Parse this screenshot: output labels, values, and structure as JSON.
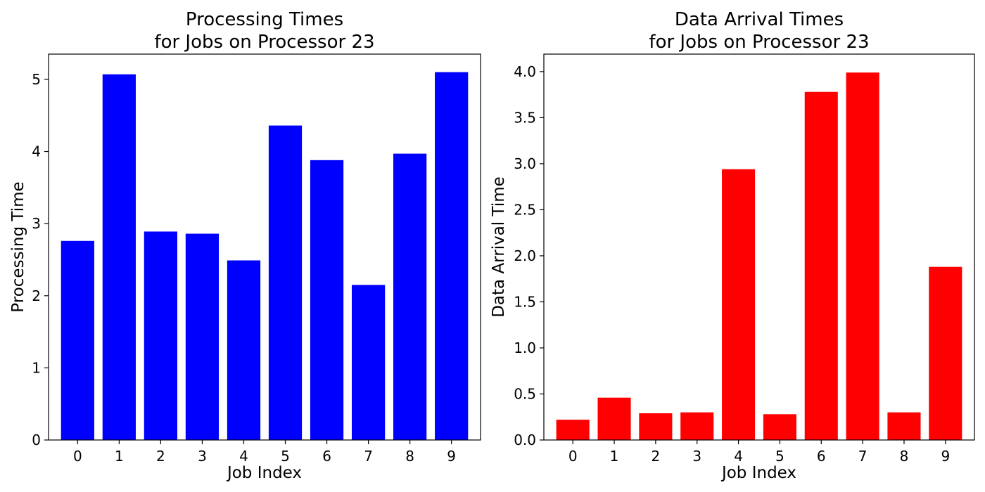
{
  "chart_data": [
    {
      "type": "bar",
      "title": [
        "Processing Times",
        "for Jobs on Processor 23"
      ],
      "xlabel": "Job Index",
      "ylabel": "Processing Time",
      "categories": [
        "0",
        "1",
        "2",
        "3",
        "4",
        "5",
        "6",
        "7",
        "8",
        "9"
      ],
      "values": [
        2.76,
        5.07,
        2.89,
        2.86,
        2.49,
        4.36,
        3.88,
        2.15,
        3.97,
        5.1
      ],
      "ylim": [
        0,
        5.35
      ],
      "yticks": [
        0,
        1,
        2,
        3,
        4,
        5
      ],
      "ytick_labels": [
        "0",
        "1",
        "2",
        "3",
        "4",
        "5"
      ],
      "color": "#0000ff",
      "grid": false
    },
    {
      "type": "bar",
      "title": [
        "Data Arrival Times",
        "for Jobs on Processor 23"
      ],
      "xlabel": "Job Index",
      "ylabel": "Data Arrival Time",
      "categories": [
        "0",
        "1",
        "2",
        "3",
        "4",
        "5",
        "6",
        "7",
        "8",
        "9"
      ],
      "values": [
        0.22,
        0.46,
        0.29,
        0.3,
        2.94,
        0.28,
        3.78,
        3.99,
        0.3,
        1.88
      ],
      "ylim": [
        0,
        4.19
      ],
      "yticks": [
        0,
        0.5,
        1,
        1.5,
        2,
        2.5,
        3,
        3.5,
        4
      ],
      "ytick_labels": [
        "0.0",
        "0.5",
        "1.0",
        "1.5",
        "2.0",
        "2.5",
        "3.0",
        "3.5",
        "4.0"
      ],
      "color": "#ff0000",
      "grid": false
    }
  ]
}
